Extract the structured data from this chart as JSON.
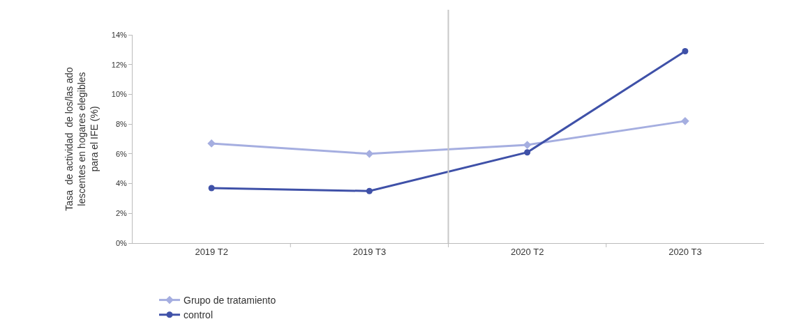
{
  "chart_data": {
    "type": "line",
    "ylabel": "Tasa  de actividad  de los/las ado\nlescentes en hogares elegibles\npara el IFE (%)",
    "categories": [
      "2019 T2",
      "2019 T3",
      "2020 T2",
      "2020 T3"
    ],
    "series": [
      {
        "name": "Grupo de tratamiento",
        "color": "#a5aee0",
        "marker": "diamond",
        "values": [
          6.7,
          6.0,
          6.6,
          8.2
        ]
      },
      {
        "name": "control",
        "color": "#3f51a8",
        "marker": "circle",
        "values": [
          3.7,
          3.5,
          6.1,
          12.9
        ]
      }
    ],
    "ylim": [
      0,
      14
    ],
    "yticks": [
      {
        "value": 0,
        "label": "0%"
      },
      {
        "value": 2,
        "label": "2%"
      },
      {
        "value": 4,
        "label": "4%"
      },
      {
        "value": 6,
        "label": "6%"
      },
      {
        "value": 8,
        "label": "8%"
      },
      {
        "value": 10,
        "label": "10%"
      },
      {
        "value": 12,
        "label": "12%"
      },
      {
        "value": 14,
        "label": "14%"
      }
    ],
    "legend": "bottom",
    "line_style": "solid"
  }
}
